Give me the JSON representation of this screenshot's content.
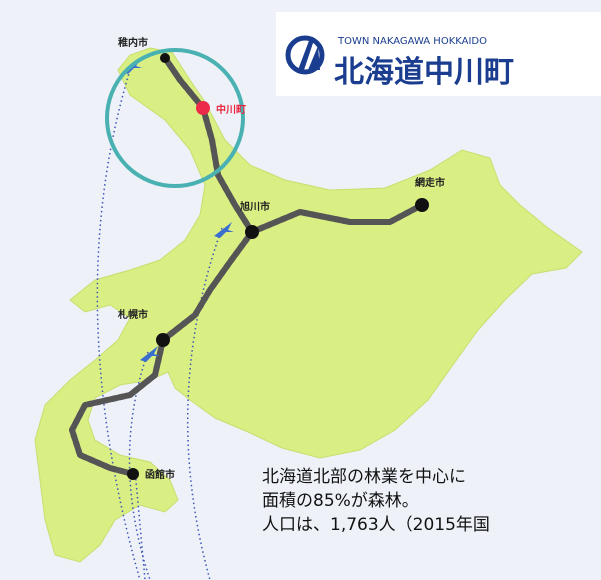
{
  "logo": {
    "subtitle": "TOWN NAKAGAWA HOKKAIDO",
    "title": "北海道中川町"
  },
  "cities": [
    {
      "label": "稚内市"
    },
    {
      "label": "中川町"
    },
    {
      "label": "旭川市"
    },
    {
      "label": "網走市"
    },
    {
      "label": "札幌市"
    },
    {
      "label": "函館市"
    }
  ],
  "caption": {
    "lines": [
      "北海道北部の林業を中心に",
      "面積の85%が森林。",
      "人口は、1,763人（2015年国"
    ]
  }
}
